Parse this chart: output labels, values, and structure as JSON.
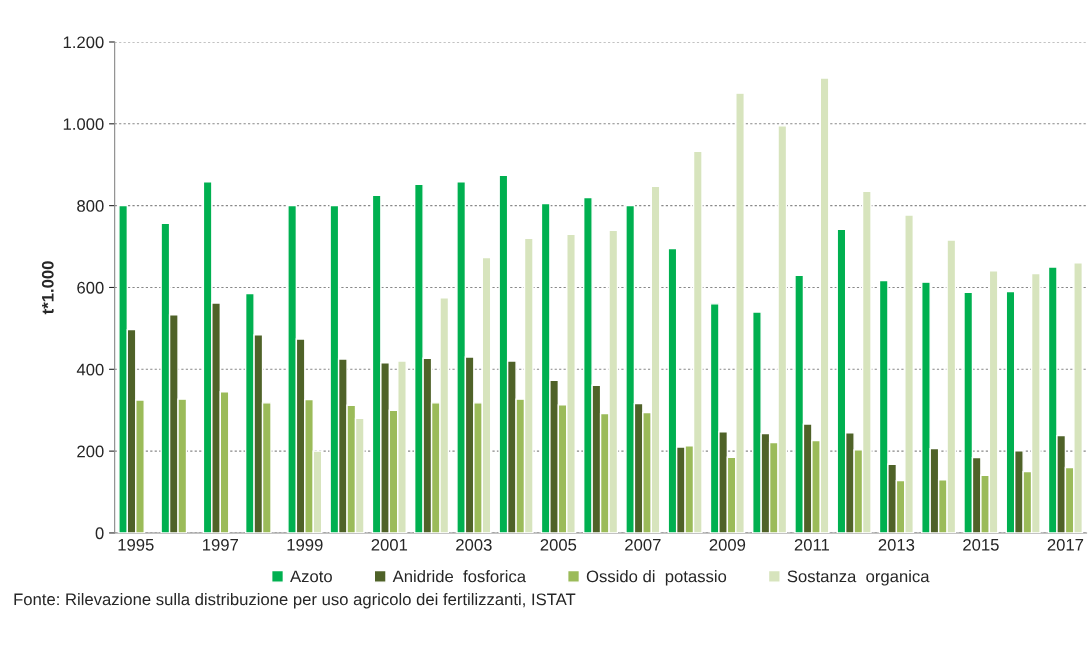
{
  "chart_data": {
    "type": "bar",
    "ylabel": "t*1.000",
    "categories": [
      "1995",
      null,
      "1997",
      null,
      "1999",
      null,
      "2001",
      null,
      "2003",
      null,
      "2005",
      null,
      "2007",
      null,
      "2009",
      null,
      "2011",
      null,
      "2013",
      null,
      "2015",
      null,
      "2017"
    ],
    "series": [
      {
        "name": "Azoto",
        "color": "#00b050",
        "values": [
          800,
          757,
          858,
          585,
          800,
          800,
          825,
          852,
          858,
          874,
          805,
          820,
          800,
          695,
          560,
          540,
          630,
          742,
          617,
          613,
          588,
          590,
          650
        ]
      },
      {
        "name": "Anidride  fosforica",
        "color": "#4f6228",
        "values": [
          497,
          533,
          562,
          484,
          474,
          425,
          416,
          427,
          430,
          420,
          373,
          361,
          316,
          210,
          247,
          243,
          266,
          245,
          168,
          206,
          184,
          201,
          238
        ]
      },
      {
        "name": "Ossido di  potassio",
        "color": "#9bbb59",
        "values": [
          325,
          327,
          345,
          318,
          326,
          312,
          300,
          318,
          318,
          327,
          313,
          292,
          294,
          213,
          185,
          221,
          226,
          203,
          128,
          130,
          141,
          150,
          160
        ]
      },
      {
        "name": "Sostanza  organica",
        "color": "#d7e4bd",
        "values": [
          null,
          null,
          null,
          null,
          200,
          280,
          420,
          575,
          673,
          720,
          730,
          740,
          847,
          933,
          1075,
          995,
          1112,
          835,
          777,
          716,
          641,
          634,
          660
        ]
      }
    ],
    "ylim": [
      0,
      1200
    ],
    "yticks": [
      0,
      200,
      400,
      600,
      800,
      {
        "value": 1000,
        "label": "1.000"
      },
      {
        "value": 1200,
        "label": "1.200"
      }
    ],
    "grid": "y",
    "legend": "bottom",
    "annotations": [
      "Fonte: Rilevazione sulla distribuzione per uso agricolo dei fertilizzanti, ISTAT"
    ]
  }
}
